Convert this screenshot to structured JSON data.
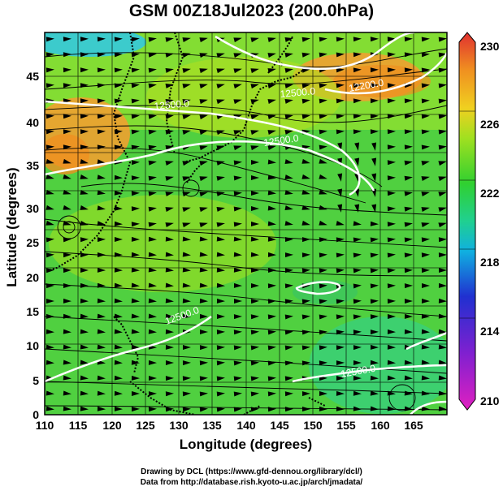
{
  "title": "GSM 00Z18Jul2023 (200.0hPa)",
  "x_axis": {
    "label": "Longitude (degrees)",
    "range": [
      110,
      170
    ],
    "ticks": [
      "110",
      "115",
      "120",
      "125",
      "130",
      "135",
      "140",
      "145",
      "150",
      "155",
      "160",
      "165"
    ]
  },
  "y_axis": {
    "label": "Latitude  (degrees)",
    "range": [
      0,
      50
    ],
    "ticks": [
      "0",
      "5",
      "10",
      "15",
      "20",
      "25",
      "30",
      "35",
      "40",
      "45"
    ]
  },
  "colorbar": {
    "range": [
      210,
      230
    ],
    "ticks": [
      "210",
      "214",
      "218",
      "222",
      "226",
      "230"
    ],
    "colors": [
      "#e020c0",
      "#8020d0",
      "#2030d0",
      "#10b0e0",
      "#20d090",
      "#30d030",
      "#a0e020",
      "#f0d020",
      "#f09020",
      "#e03030"
    ]
  },
  "contour_labels": [
    "12200.0",
    "12500.0",
    "12500.0",
    "12500.0",
    "12500.0",
    "12500.0"
  ],
  "credits": {
    "line1": "Drawing by DCL (https://www.gfd-dennou.org/library/dcl/)",
    "line2": "Data from http://database.rish.kyoto-u.ac.jp/arch/jmadata/"
  }
}
